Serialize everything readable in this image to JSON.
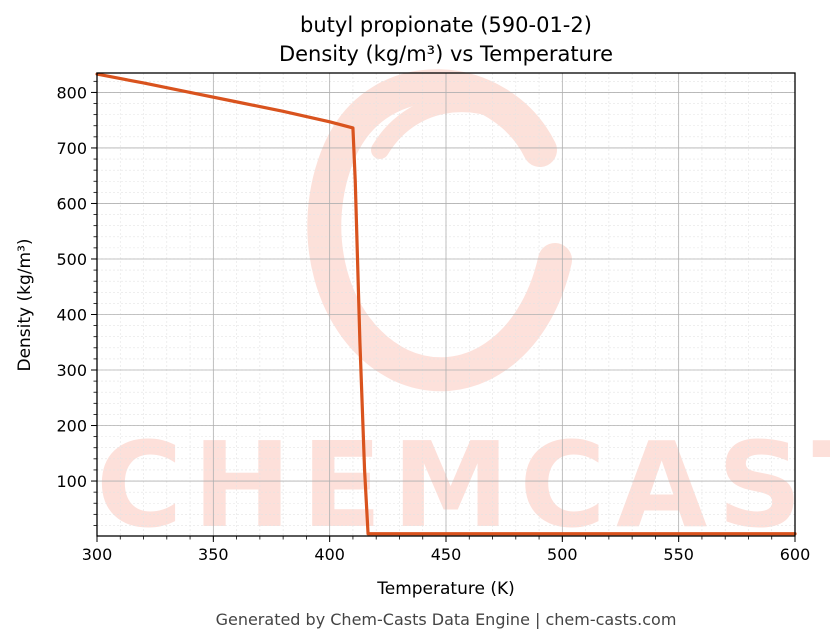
{
  "chart_data": {
    "type": "line",
    "title": "butyl propionate (590-01-2)",
    "subtitle": "Density (kg/m³) vs Temperature",
    "xlabel": "Temperature (K)",
    "ylabel": "Density (kg/m³)",
    "xlim": [
      300,
      600
    ],
    "ylim": [
      1,
      835
    ],
    "xticks": [
      300,
      350,
      400,
      450,
      500,
      550,
      600
    ],
    "yticks": [
      100,
      200,
      300,
      400,
      500,
      600,
      700,
      800
    ],
    "grid": true,
    "series": [
      {
        "color": "#d9531e",
        "x": [
          300,
          320,
          340,
          360,
          380,
          400,
          410,
          411,
          413,
          415,
          416.5,
          420,
          450,
          500,
          550,
          600
        ],
        "y": [
          833,
          817,
          800,
          783,
          766,
          747,
          736,
          640,
          350,
          120,
          5,
          5,
          5,
          5,
          5,
          5
        ]
      }
    ]
  },
  "watermark": "CHEMCASTS",
  "footer": "Generated by Chem-Casts Data Engine | chem-casts.com"
}
